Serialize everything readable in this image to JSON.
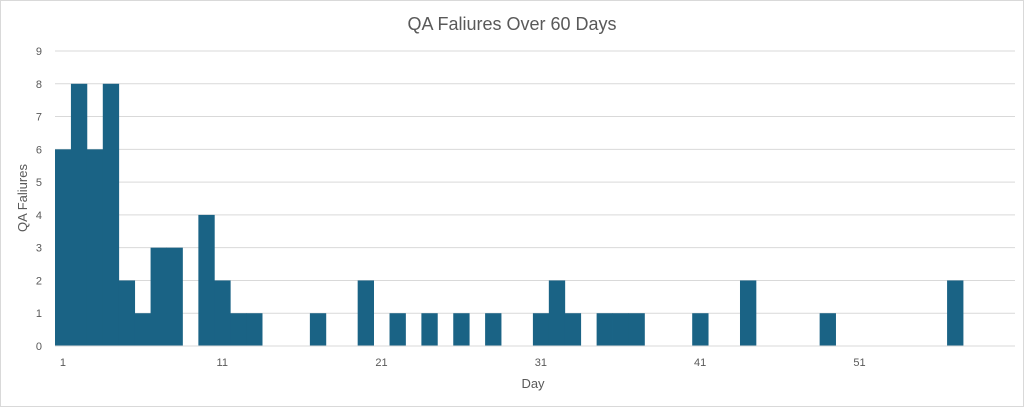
{
  "chart_data": {
    "type": "bar",
    "title": "QA Faliures Over 60 Days",
    "xlabel": "Day",
    "ylabel": "QA Faliures",
    "x": [
      1,
      2,
      3,
      4,
      5,
      6,
      7,
      8,
      9,
      10,
      11,
      12,
      13,
      14,
      15,
      16,
      17,
      18,
      19,
      20,
      21,
      22,
      23,
      24,
      25,
      26,
      27,
      28,
      29,
      30,
      31,
      32,
      33,
      34,
      35,
      36,
      37,
      38,
      39,
      40,
      41,
      42,
      43,
      44,
      45,
      46,
      47,
      48,
      49,
      50,
      51,
      52,
      53,
      54,
      55,
      56,
      57,
      58,
      59,
      60
    ],
    "values": [
      6,
      8,
      6,
      8,
      2,
      1,
      3,
      3,
      0,
      4,
      2,
      1,
      1,
      0,
      0,
      0,
      1,
      0,
      0,
      2,
      0,
      1,
      0,
      1,
      0,
      1,
      0,
      1,
      0,
      0,
      1,
      2,
      1,
      0,
      1,
      1,
      1,
      0,
      0,
      0,
      1,
      0,
      0,
      2,
      0,
      0,
      0,
      0,
      1,
      0,
      0,
      0,
      0,
      0,
      0,
      0,
      2,
      0,
      0,
      0
    ],
    "x_tick_labels": [
      "1",
      "11",
      "21",
      "31",
      "41",
      "51"
    ],
    "y_tick_labels": [
      "0",
      "1",
      "2",
      "3",
      "4",
      "5",
      "6",
      "7",
      "8",
      "9"
    ],
    "ylim": [
      0,
      9
    ],
    "grid": true,
    "legend": "none",
    "bar_color": "#1a6385",
    "grid_color": "#d9d9d9"
  }
}
